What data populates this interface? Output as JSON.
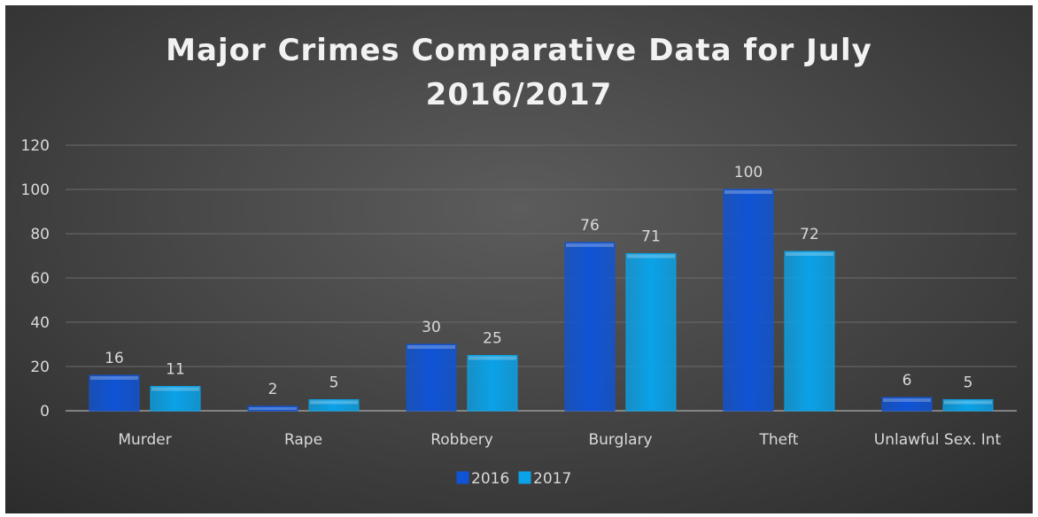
{
  "chart_data": {
    "type": "bar",
    "title": "Major Crimes Comparative Data for July\n2016/2017",
    "categories": [
      "Murder",
      "Rape",
      "Robbery",
      "Burglary",
      "Theft",
      "Unlawful Sex. Int"
    ],
    "series": [
      {
        "name": "2016",
        "values": [
          16,
          2,
          30,
          76,
          100,
          6
        ],
        "color": "#0f54d6"
      },
      {
        "name": "2017",
        "values": [
          11,
          5,
          25,
          71,
          72,
          5
        ],
        "color": "#0aa2e8"
      }
    ],
    "ylim": [
      0,
      120
    ],
    "yticks": [
      0,
      20,
      40,
      60,
      80,
      100,
      120
    ],
    "grid": true,
    "legend": "bottom-center",
    "data_labels": true
  }
}
